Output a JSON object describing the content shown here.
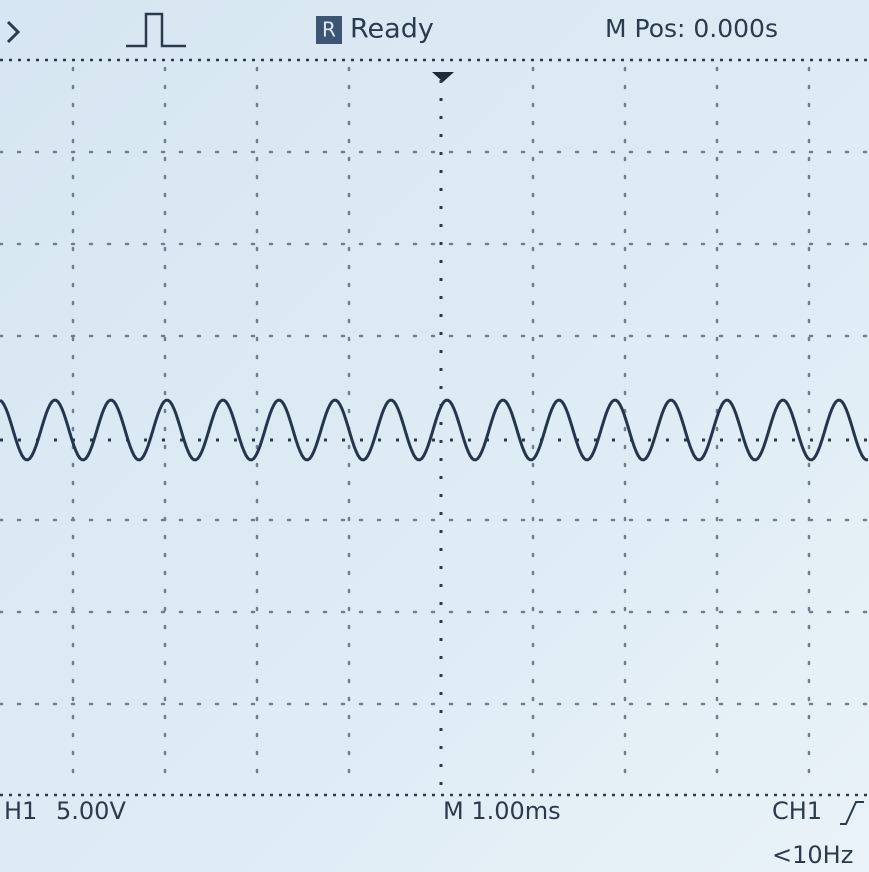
{
  "header": {
    "channel_icon": "R",
    "status": "Ready",
    "position": "M Pos: 0.000s"
  },
  "footer": {
    "channel": "H1",
    "scale": "5.00V",
    "timebase": "M 1.00ms",
    "trigger_source": "CH1",
    "trigger_frequency": "<10Hz"
  }
}
